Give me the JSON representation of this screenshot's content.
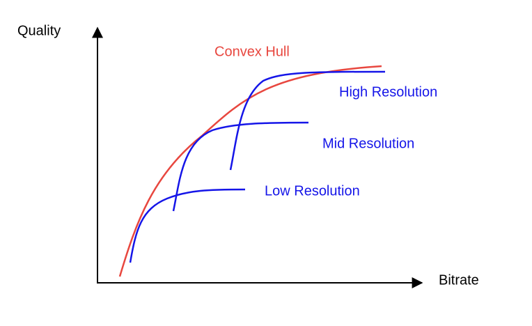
{
  "axes": {
    "y_label": "Quality",
    "x_label": "Bitrate"
  },
  "curves": [
    {
      "label": "Convex Hull"
    },
    {
      "label": "High Resolution"
    },
    {
      "label": "Mid Resolution"
    },
    {
      "label": "Low Resolution"
    }
  ]
}
